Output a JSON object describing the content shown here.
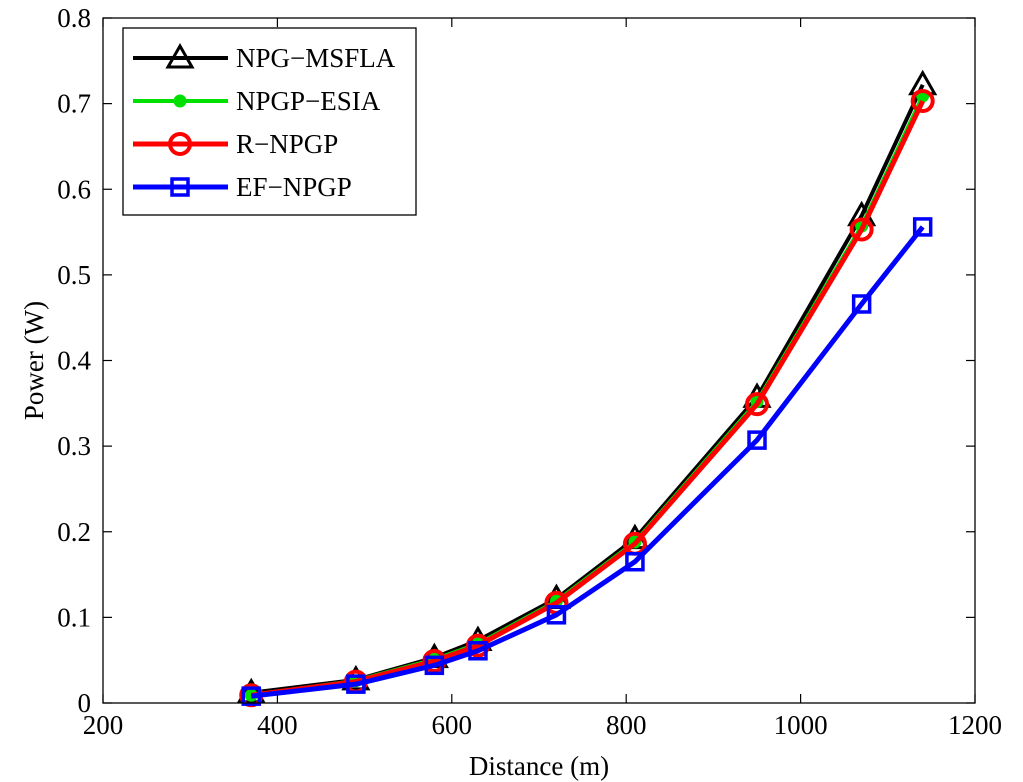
{
  "chart_data": {
    "type": "line",
    "title": "",
    "xlabel": "Distance (m)",
    "ylabel": "Power (W)",
    "xlim": [
      200,
      1200
    ],
    "ylim": [
      0,
      0.8
    ],
    "xticks": [
      200,
      400,
      600,
      800,
      1000,
      1200
    ],
    "yticks": [
      0,
      0.1,
      0.2,
      0.3,
      0.4,
      0.5,
      0.6,
      0.7,
      0.8
    ],
    "xtick_labels": [
      "200",
      "400",
      "600",
      "800",
      "1000",
      "1200"
    ],
    "ytick_labels": [
      "0",
      "0.1",
      "0.2",
      "0.3",
      "0.4",
      "0.5",
      "0.6",
      "0.7",
      "0.8"
    ],
    "grid": false,
    "legend_position": "top-left",
    "x": [
      370,
      490,
      580,
      630,
      720,
      810,
      950,
      1070,
      1140
    ],
    "series": [
      {
        "name": "NPG−MSFLA",
        "color": "#000000",
        "marker": "triangle",
        "values": [
          0.012,
          0.027,
          0.053,
          0.073,
          0.122,
          0.192,
          0.357,
          0.569,
          0.722
        ]
      },
      {
        "name": "NPGP−ESIA",
        "color": "#00e000",
        "marker": "dot",
        "values": [
          0.009,
          0.026,
          0.051,
          0.069,
          0.119,
          0.188,
          0.352,
          0.557,
          0.709
        ]
      },
      {
        "name": "R−NPGP",
        "color": "#ff0000",
        "marker": "circle",
        "values": [
          0.009,
          0.025,
          0.049,
          0.067,
          0.117,
          0.186,
          0.349,
          0.553,
          0.703
        ]
      },
      {
        "name": "EF−NPGP",
        "color": "#0000ff",
        "marker": "square",
        "values": [
          0.008,
          0.022,
          0.044,
          0.061,
          0.103,
          0.165,
          0.307,
          0.466,
          0.556
        ]
      }
    ]
  }
}
